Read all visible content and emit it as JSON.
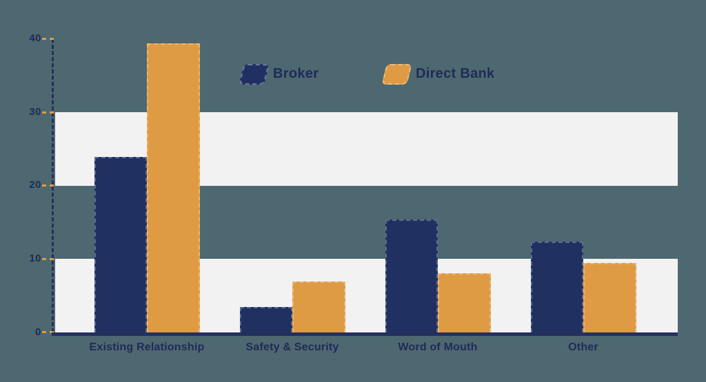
{
  "chart_data": {
    "type": "bar",
    "title": "",
    "xlabel": "",
    "ylabel": "",
    "categories": [
      "Existing Relationship",
      "Safety & Security",
      "Word of Mouth",
      "Other"
    ],
    "series": [
      {
        "name": "Broker",
        "color": "#1f3061",
        "values": [
          23.9,
          3.5,
          15.4,
          12.4
        ]
      },
      {
        "name": "Direct Bank",
        "color": "#df9b43",
        "values": [
          39.3,
          6.9,
          8.1,
          9.5
        ]
      }
    ],
    "ylim": [
      0,
      40
    ],
    "y_ticks": [
      "0",
      "10",
      "20",
      "30",
      "40"
    ],
    "legend_position": "top-center",
    "grid": "alternating horizontal highlight bands over ranges 0-10 and 20-30"
  },
  "legend": {
    "items": [
      {
        "label": "Broker",
        "swatch_color": "#1f3061"
      },
      {
        "label": "Direct Bank",
        "swatch_color": "#df9b43"
      }
    ]
  },
  "colors": {
    "background": "#4d6870",
    "band": "#f2f2f3",
    "broker": "#1f3061",
    "direct_bank": "#df9b43",
    "axis": "#24305c",
    "tick": "#df9b43",
    "text": "#1f2b57"
  }
}
